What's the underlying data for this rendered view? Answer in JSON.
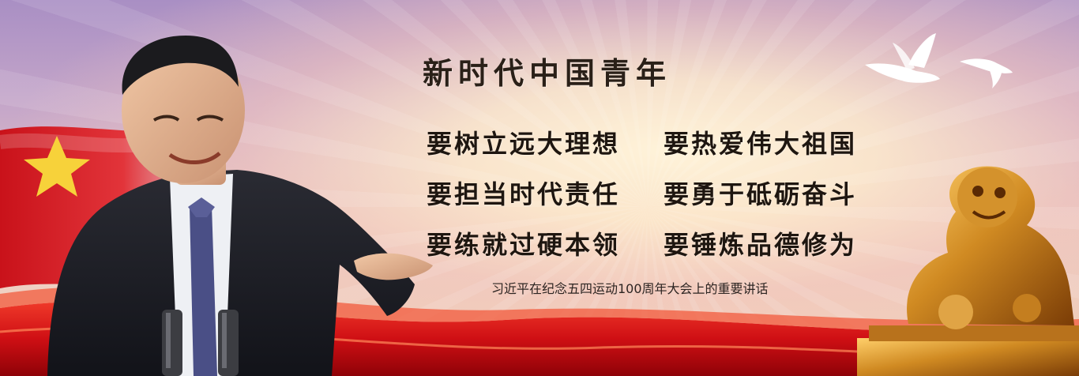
{
  "banner": {
    "title": "新时代中国青年",
    "slogans": [
      [
        "要树立远大理想",
        "要热爱伟大祖国"
      ],
      [
        "要担当时代责任",
        "要勇于砥砺奋斗"
      ],
      [
        "要练就过硬本领",
        "要锤炼品德修为"
      ]
    ],
    "caption": "习近平在纪念五四运动100周年大会上的重要讲话"
  },
  "colors": {
    "flag_red": "#d8141a",
    "star_yellow": "#f7d23a",
    "lion_gold": "#c9831f",
    "text_dark": "#1e1610"
  },
  "icons": [
    "flag-icon",
    "dove-icon",
    "lion-statue-icon",
    "speaker-figure"
  ]
}
